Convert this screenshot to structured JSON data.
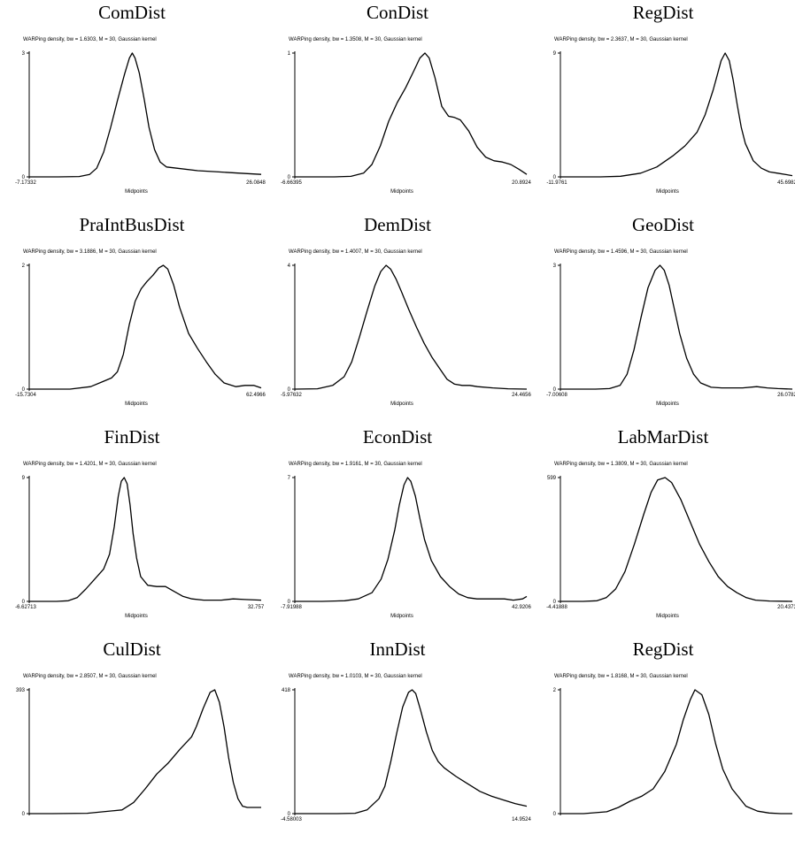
{
  "chart_data": [
    {
      "type": "line",
      "title": "ComDist",
      "subtitle": "WARPing density, bw = 1.6303, M = 30, Gaussian kernel",
      "xlabel": "Midpoints",
      "xmin_label": "-7.17332",
      "xmax_label": "26.0848",
      "ytop_label": "3",
      "ybottom_label": "0",
      "x_range": [
        -7.17332,
        26.0848
      ],
      "y_range": [
        0,
        1
      ],
      "x": [
        -7.173,
        -3.0,
        0.0,
        1.5,
        2.5,
        3.5,
        4.5,
        5.5,
        6.5,
        7.2,
        7.6,
        8.0,
        8.6,
        9.3,
        10.0,
        10.8,
        11.6,
        12.5,
        14.0,
        17.0,
        20.0,
        23.0,
        26.085
      ],
      "y": [
        0,
        0,
        0.003,
        0.02,
        0.07,
        0.2,
        0.4,
        0.62,
        0.83,
        0.96,
        1.0,
        0.96,
        0.84,
        0.63,
        0.4,
        0.22,
        0.12,
        0.08,
        0.07,
        0.05,
        0.04,
        0.03,
        0.02
      ]
    },
    {
      "type": "line",
      "title": "ConDist",
      "subtitle": "WARPing density, bw = 1.3508, M = 30, Gaussian kernel",
      "xlabel": "Midpoints",
      "xmin_label": "-6.66395",
      "xmax_label": "20.8924",
      "ytop_label": "1",
      "ybottom_label": "0",
      "x_range": [
        -6.66395,
        20.8924
      ],
      "y_range": [
        0,
        1
      ],
      "x": [
        -6.664,
        -2.0,
        0.0,
        1.5,
        2.5,
        3.5,
        4.5,
        5.5,
        6.5,
        7.5,
        8.2,
        8.8,
        9.3,
        10.0,
        10.8,
        11.6,
        12.3,
        13.0,
        14.0,
        15.0,
        16.0,
        17.0,
        18.0,
        19.0,
        20.0,
        20.892
      ],
      "y": [
        0,
        0,
        0.004,
        0.03,
        0.1,
        0.25,
        0.45,
        0.6,
        0.72,
        0.86,
        0.96,
        1.0,
        0.96,
        0.8,
        0.57,
        0.49,
        0.48,
        0.46,
        0.37,
        0.24,
        0.16,
        0.13,
        0.12,
        0.1,
        0.06,
        0.02
      ]
    },
    {
      "type": "line",
      "title": "RegDist",
      "subtitle": "WARPing density, bw = 2.3637, M = 30, Gaussian kernel",
      "xlabel": "Midpoints",
      "xmin_label": "-11.9761",
      "xmax_label": "45.6982",
      "ytop_label": "9",
      "ybottom_label": "0",
      "x_range": [
        -11.9761,
        45.6982
      ],
      "y_range": [
        0,
        1
      ],
      "x": [
        -11.976,
        -2.0,
        3.0,
        8.0,
        12.0,
        16.0,
        19.0,
        22.0,
        24.0,
        26.0,
        27.0,
        28.0,
        29.0,
        30.0,
        31.0,
        32.0,
        33.0,
        34.0,
        36.0,
        38.0,
        40.0,
        42.0,
        45.698
      ],
      "y": [
        0,
        0,
        0.005,
        0.03,
        0.08,
        0.17,
        0.25,
        0.36,
        0.5,
        0.7,
        0.82,
        0.94,
        1.0,
        0.94,
        0.78,
        0.58,
        0.4,
        0.27,
        0.13,
        0.07,
        0.04,
        0.03,
        0.01
      ]
    },
    {
      "type": "line",
      "title": "PraIntBusDist",
      "subtitle": "WARPing density, bw = 3.1886, M = 30, Gaussian kernel",
      "xlabel": "Midpoints",
      "xmin_label": "-15.7304",
      "xmax_label": "62.4966",
      "ytop_label": "2",
      "ybottom_label": "0",
      "x_range": [
        -15.7304,
        62.4966
      ],
      "y_range": [
        0,
        1
      ],
      "x": [
        -15.73,
        -2.0,
        5.0,
        9.0,
        12.0,
        14.0,
        16.0,
        18.0,
        20.0,
        22.0,
        24.0,
        26.0,
        28.0,
        29.5,
        31.0,
        33.0,
        35.0,
        38.0,
        41.0,
        44.0,
        47.0,
        50.0,
        54.0,
        57.0,
        60.0,
        62.5
      ],
      "y": [
        0,
        0,
        0.02,
        0.06,
        0.09,
        0.14,
        0.28,
        0.52,
        0.71,
        0.81,
        0.87,
        0.92,
        0.98,
        1.0,
        0.97,
        0.84,
        0.66,
        0.45,
        0.33,
        0.22,
        0.12,
        0.05,
        0.02,
        0.03,
        0.03,
        0.01
      ]
    },
    {
      "type": "line",
      "title": "DemDist",
      "subtitle": "WARPing density, bw = 1.4007, M = 30, Gaussian kernel",
      "xlabel": "Midpoints",
      "xmin_label": "-5.97632",
      "xmax_label": "24.4656",
      "ytop_label": "4",
      "ybottom_label": "0",
      "x_range": [
        -5.97632,
        24.4656
      ],
      "y_range": [
        0,
        1
      ],
      "x": [
        -5.976,
        -3.0,
        -1.0,
        0.5,
        1.5,
        2.5,
        3.5,
        4.5,
        5.3,
        6.0,
        6.6,
        7.3,
        8.0,
        9.0,
        10.0,
        11.0,
        12.0,
        13.0,
        14.0,
        15.0,
        16.0,
        17.0,
        18.0,
        20.0,
        22.0,
        24.466
      ],
      "y": [
        0,
        0.003,
        0.03,
        0.1,
        0.22,
        0.42,
        0.63,
        0.83,
        0.95,
        1.0,
        0.97,
        0.89,
        0.79,
        0.64,
        0.5,
        0.37,
        0.26,
        0.17,
        0.08,
        0.04,
        0.03,
        0.03,
        0.02,
        0.01,
        0.003,
        0
      ]
    },
    {
      "type": "line",
      "title": "GeoDist",
      "subtitle": "WARPing density, bw = 1.4596, M = 30, Gaussian kernel",
      "xlabel": "Midpoints",
      "xmin_label": "-7.00608",
      "xmax_label": "26.0782",
      "ytop_label": "3",
      "ybottom_label": "0",
      "x_range": [
        -7.00608,
        26.0782
      ],
      "y_range": [
        0,
        1
      ],
      "x": [
        -7.006,
        -2.0,
        0.0,
        1.5,
        2.5,
        3.5,
        4.5,
        5.5,
        6.5,
        7.2,
        7.8,
        8.5,
        9.2,
        10.0,
        11.0,
        12.0,
        13.0,
        14.5,
        16.0,
        19.0,
        21.0,
        22.5,
        24.0,
        26.078
      ],
      "y": [
        0,
        0,
        0.004,
        0.03,
        0.12,
        0.32,
        0.58,
        0.82,
        0.96,
        1.0,
        0.96,
        0.84,
        0.66,
        0.45,
        0.25,
        0.12,
        0.05,
        0.015,
        0.01,
        0.01,
        0.02,
        0.01,
        0.004,
        0
      ]
    },
    {
      "type": "line",
      "title": "FinDist",
      "subtitle": "WARPing density, bw = 1.4201, M = 30, Gaussian kernel",
      "xlabel": "Midpoints",
      "xmin_label": "-6.62713",
      "xmax_label": "32.757",
      "ytop_label": "9",
      "ybottom_label": "0",
      "x_range": [
        -6.62713,
        32.757
      ],
      "y_range": [
        0,
        1
      ],
      "x": [
        -6.627,
        -2.0,
        0.0,
        1.5,
        3.0,
        4.5,
        6.0,
        7.0,
        7.8,
        8.5,
        9.0,
        9.5,
        10.0,
        10.5,
        11.0,
        11.6,
        12.3,
        13.5,
        15.0,
        16.5,
        18.0,
        19.5,
        21.0,
        23.0,
        26.0,
        28.0,
        30.0,
        32.757
      ],
      "y": [
        0,
        0,
        0.005,
        0.03,
        0.1,
        0.18,
        0.26,
        0.38,
        0.6,
        0.85,
        0.97,
        1.0,
        0.95,
        0.78,
        0.55,
        0.35,
        0.2,
        0.13,
        0.12,
        0.12,
        0.08,
        0.04,
        0.02,
        0.01,
        0.01,
        0.02,
        0.015,
        0.01
      ]
    },
    {
      "type": "line",
      "title": "EconDist",
      "subtitle": "WARPing density, bw = 1.9161, M = 30, Gaussian kernel",
      "xlabel": "Midpoints",
      "xmin_label": "-7.91988",
      "xmax_label": "42.9206",
      "ytop_label": "7",
      "ybottom_label": "0",
      "x_range": [
        -7.91988,
        42.9206
      ],
      "y_range": [
        0,
        1
      ],
      "x": [
        -7.92,
        -2.0,
        3.0,
        6.0,
        9.0,
        11.0,
        12.5,
        14.0,
        15.0,
        16.0,
        16.8,
        17.5,
        18.5,
        19.5,
        20.5,
        22.0,
        24.0,
        26.0,
        28.0,
        30.0,
        32.0,
        35.0,
        38.0,
        40.0,
        42.0,
        42.92
      ],
      "y": [
        0,
        0,
        0.005,
        0.02,
        0.07,
        0.18,
        0.34,
        0.58,
        0.78,
        0.94,
        1.0,
        0.97,
        0.85,
        0.67,
        0.5,
        0.33,
        0.2,
        0.12,
        0.06,
        0.03,
        0.02,
        0.02,
        0.02,
        0.01,
        0.02,
        0.04
      ]
    },
    {
      "type": "line",
      "title": "LabMarDist",
      "subtitle": "WARPing density, bw = 1.3809, M = 30, Gaussian kernel",
      "xlabel": "Midpoints",
      "xmin_label": "-4.41888",
      "xmax_label": "20.4373",
      "ytop_label": "599",
      "ybottom_label": "0",
      "x_range": [
        -4.41888,
        20.4373
      ],
      "y_range": [
        0,
        1
      ],
      "x": [
        -4.419,
        -2.0,
        -0.5,
        0.5,
        1.5,
        2.5,
        3.5,
        4.5,
        5.3,
        6.0,
        6.8,
        7.5,
        8.5,
        9.5,
        10.5,
        11.5,
        12.5,
        13.5,
        14.5,
        15.5,
        16.5,
        18.0,
        20.437
      ],
      "y": [
        0,
        0,
        0.005,
        0.03,
        0.1,
        0.24,
        0.46,
        0.7,
        0.88,
        0.98,
        1.0,
        0.96,
        0.82,
        0.64,
        0.46,
        0.32,
        0.2,
        0.12,
        0.07,
        0.03,
        0.01,
        0.003,
        0
      ]
    },
    {
      "type": "line",
      "title": "CulDist",
      "subtitle": "WARPing density, bw = 2.8507, M = 30, Gaussian kernel",
      "xlabel": "",
      "xmin_label": "",
      "xmax_label": "",
      "ytop_label": "393",
      "ybottom_label": "0",
      "x_range": [
        0,
        1
      ],
      "y_range": [
        0,
        1
      ],
      "x": [
        0.0,
        0.1,
        0.25,
        0.4,
        0.45,
        0.5,
        0.55,
        0.6,
        0.65,
        0.7,
        0.72,
        0.75,
        0.78,
        0.8,
        0.82,
        0.84,
        0.86,
        0.88,
        0.9,
        0.92,
        0.94,
        0.97,
        1.0
      ],
      "y": [
        0,
        0,
        0.003,
        0.03,
        0.09,
        0.2,
        0.32,
        0.41,
        0.52,
        0.62,
        0.7,
        0.85,
        0.98,
        1.0,
        0.9,
        0.7,
        0.45,
        0.25,
        0.12,
        0.06,
        0.05,
        0.05,
        0.05
      ]
    },
    {
      "type": "line",
      "title": "InnDist",
      "subtitle": "WARPing density, bw = 1.0103, M = 30, Gaussian kernel",
      "xlabel": "",
      "xmin_label": "-4.58003",
      "xmax_label": "14.9524",
      "ytop_label": "418",
      "ybottom_label": "0",
      "x_range": [
        -4.58003,
        14.9524
      ],
      "y_range": [
        0,
        1
      ],
      "x": [
        -4.58,
        -1.0,
        0.5,
        1.5,
        2.5,
        3.0,
        3.5,
        4.0,
        4.5,
        5.0,
        5.3,
        5.6,
        6.0,
        6.5,
        7.0,
        7.5,
        8.0,
        9.0,
        10.0,
        11.0,
        12.0,
        13.0,
        14.0,
        14.95
      ],
      "y": [
        0,
        0,
        0.003,
        0.03,
        0.12,
        0.22,
        0.42,
        0.65,
        0.86,
        0.98,
        1.0,
        0.97,
        0.84,
        0.66,
        0.51,
        0.42,
        0.37,
        0.3,
        0.24,
        0.18,
        0.14,
        0.11,
        0.08,
        0.06
      ]
    },
    {
      "type": "line",
      "title": "RegDist",
      "subtitle": "WARPing density, bw = 1.8168, M = 30, Gaussian kernel",
      "xlabel": "",
      "xmin_label": "",
      "xmax_label": "",
      "ytop_label": "2",
      "ybottom_label": "0",
      "x_range": [
        0,
        1
      ],
      "y_range": [
        0,
        1
      ],
      "x": [
        0.0,
        0.1,
        0.2,
        0.25,
        0.3,
        0.35,
        0.4,
        0.45,
        0.5,
        0.53,
        0.56,
        0.58,
        0.61,
        0.64,
        0.67,
        0.7,
        0.74,
        0.8,
        0.85,
        0.9,
        0.95,
        1.0
      ],
      "y": [
        0,
        0,
        0.015,
        0.05,
        0.1,
        0.14,
        0.2,
        0.34,
        0.56,
        0.76,
        0.92,
        1.0,
        0.96,
        0.8,
        0.56,
        0.36,
        0.2,
        0.06,
        0.02,
        0.005,
        0,
        0
      ]
    }
  ]
}
